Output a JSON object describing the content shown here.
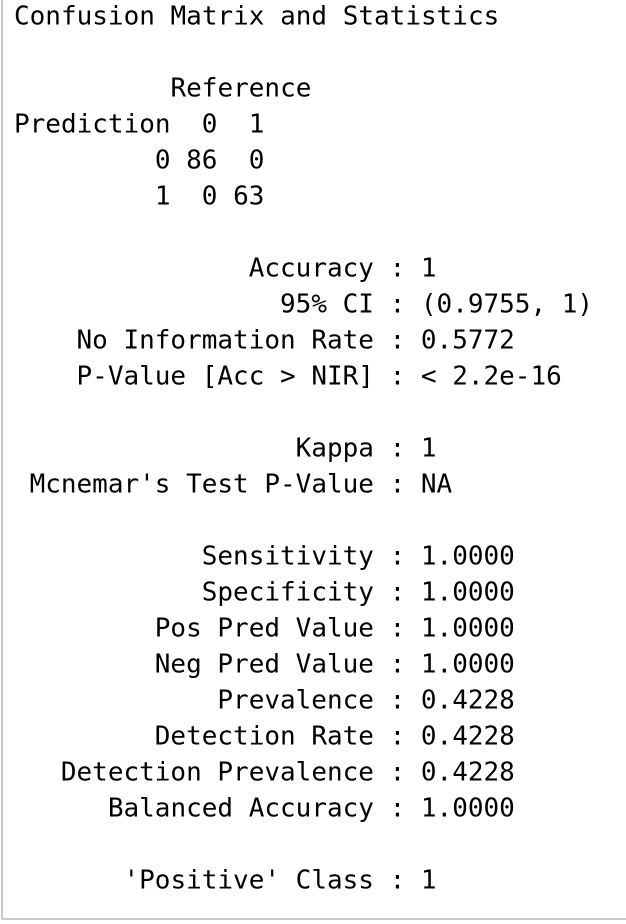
{
  "title": "Confusion Matrix and Statistics",
  "matrix": {
    "reference_label": "Reference",
    "prediction_label": "Prediction",
    "columns": [
      "0",
      "1"
    ],
    "rows": [
      {
        "label": "0",
        "cells": [
          86,
          0
        ]
      },
      {
        "label": "1",
        "cells": [
          0,
          63
        ]
      }
    ]
  },
  "separator": ":",
  "stats": [
    [
      {
        "label": "Accuracy",
        "value": "1"
      },
      {
        "label": "95% CI",
        "value": "(0.9755, 1)"
      },
      {
        "label": "No Information Rate",
        "value": "0.5772"
      },
      {
        "label": "P-Value [Acc > NIR]",
        "value": "< 2.2e-16"
      }
    ],
    [
      {
        "label": "Kappa",
        "value": "1"
      },
      {
        "label": "Mcnemar's Test P-Value",
        "value": "NA"
      }
    ],
    [
      {
        "label": "Sensitivity",
        "value": "1.0000"
      },
      {
        "label": "Specificity",
        "value": "1.0000"
      },
      {
        "label": "Pos Pred Value",
        "value": "1.0000"
      },
      {
        "label": "Neg Pred Value",
        "value": "1.0000"
      },
      {
        "label": "Prevalence",
        "value": "0.4228"
      },
      {
        "label": "Detection Rate",
        "value": "0.4228"
      },
      {
        "label": "Detection Prevalence",
        "value": "0.4228"
      },
      {
        "label": "Balanced Accuracy",
        "value": "1.0000"
      }
    ],
    [
      {
        "label": "'Positive' Class",
        "value": "1"
      }
    ]
  ]
}
